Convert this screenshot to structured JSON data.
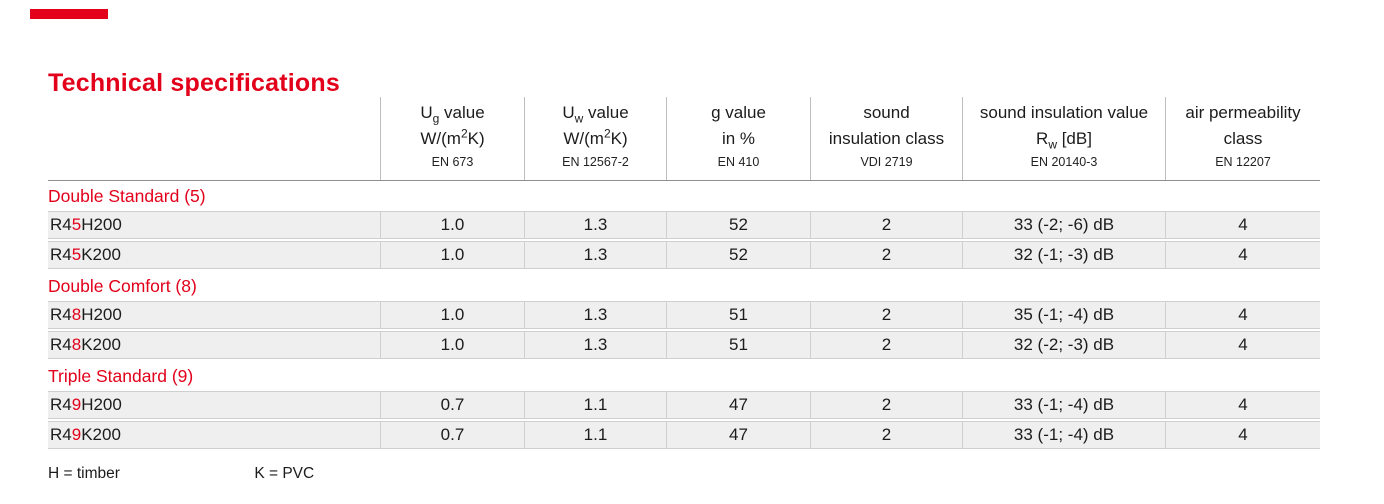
{
  "page": {
    "title": "Technical specifications",
    "accent_color": "#e2001a"
  },
  "table": {
    "header": {
      "columns": [
        {
          "l1_pre": "U",
          "l1_sub": "g",
          "l1_post": " value",
          "l2_pre": "W/(m",
          "l2_sup": "2",
          "l2_post": "K)",
          "standard": "EN 673"
        },
        {
          "l1_pre": "U",
          "l1_sub": "w",
          "l1_post": " value",
          "l2_pre": "W/(m",
          "l2_sup": "2",
          "l2_post": "K)",
          "standard": "EN 12567-2"
        },
        {
          "l1_pre": "g value",
          "l2_pre": "in %",
          "standard": "EN 410"
        },
        {
          "l1_pre": "sound",
          "l2_pre": "insulation class",
          "standard": "VDI 2719"
        },
        {
          "l1_pre": "sound insulation value",
          "l2_pre": "R",
          "l2_sub": "w",
          "l2_post": " [dB]",
          "standard": "EN 20140-3"
        },
        {
          "l1_pre": "air permeability",
          "l2_pre": "class",
          "standard": "EN 12207"
        }
      ]
    },
    "sections": [
      {
        "label": "Double Standard (5)",
        "rows": [
          {
            "name_pre": "R4",
            "name_accent": "5",
            "name_post": " H200",
            "values": [
              "1.0",
              "1.3",
              "52",
              "2",
              "33 (-2; -6) dB",
              "4"
            ]
          },
          {
            "name_pre": "R4",
            "name_accent": "5",
            "name_post": " K200",
            "values": [
              "1.0",
              "1.3",
              "52",
              "2",
              "32 (-1; -3) dB",
              "4"
            ]
          }
        ]
      },
      {
        "label": "Double Comfort (8)",
        "rows": [
          {
            "name_pre": "R4",
            "name_accent": "8",
            "name_post": " H200",
            "values": [
              "1.0",
              "1.3",
              "51",
              "2",
              "35 (-1; -4) dB",
              "4"
            ]
          },
          {
            "name_pre": "R4",
            "name_accent": "8",
            "name_post": " K200",
            "values": [
              "1.0",
              "1.3",
              "51",
              "2",
              "32 (-2; -3) dB",
              "4"
            ]
          }
        ]
      },
      {
        "label": "Triple Standard (9)",
        "rows": [
          {
            "name_pre": "R4",
            "name_accent": "9",
            "name_post": " H200",
            "values": [
              "0.7",
              "1.1",
              "47",
              "2",
              "33 (-1; -4) dB",
              "4"
            ]
          },
          {
            "name_pre": "R4",
            "name_accent": "9",
            "name_post": " K200",
            "values": [
              "0.7",
              "1.1",
              "47",
              "2",
              "33 (-1; -4) dB",
              "4"
            ]
          }
        ]
      }
    ],
    "footnotes": [
      {
        "text": "H = timber"
      },
      {
        "text": "K = PVC"
      }
    ]
  }
}
